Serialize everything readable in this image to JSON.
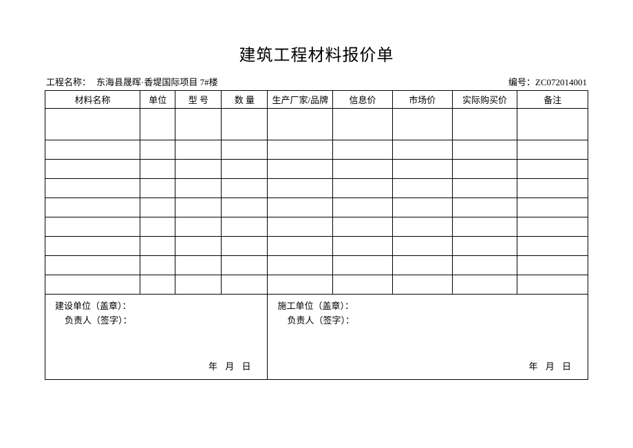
{
  "title": "建筑工程材料报价单",
  "header": {
    "project_label": "工程名称：",
    "project_name": "东海县晟晖·香堤国际项目 7#楼",
    "serial_label": "编号：",
    "serial_value": "ZC072014001"
  },
  "columns": {
    "name": "材料名称",
    "unit": "单位",
    "model": "型 号",
    "qty": "数 量",
    "mfr": "生产厂家/品牌",
    "info": "信息价",
    "market": "市场价",
    "actual": "实际购买价",
    "remark": "备注"
  },
  "rows": [
    "",
    "",
    "",
    "",
    "",
    "",
    "",
    "",
    ""
  ],
  "signatures": {
    "left": {
      "org": "建设单位（盖章）：",
      "person": "负责人（签字）：",
      "date": "年  月  日"
    },
    "right": {
      "org": "施工单位（盖章）：",
      "person": "负责人（签字）：",
      "date": "年  月  日"
    }
  }
}
